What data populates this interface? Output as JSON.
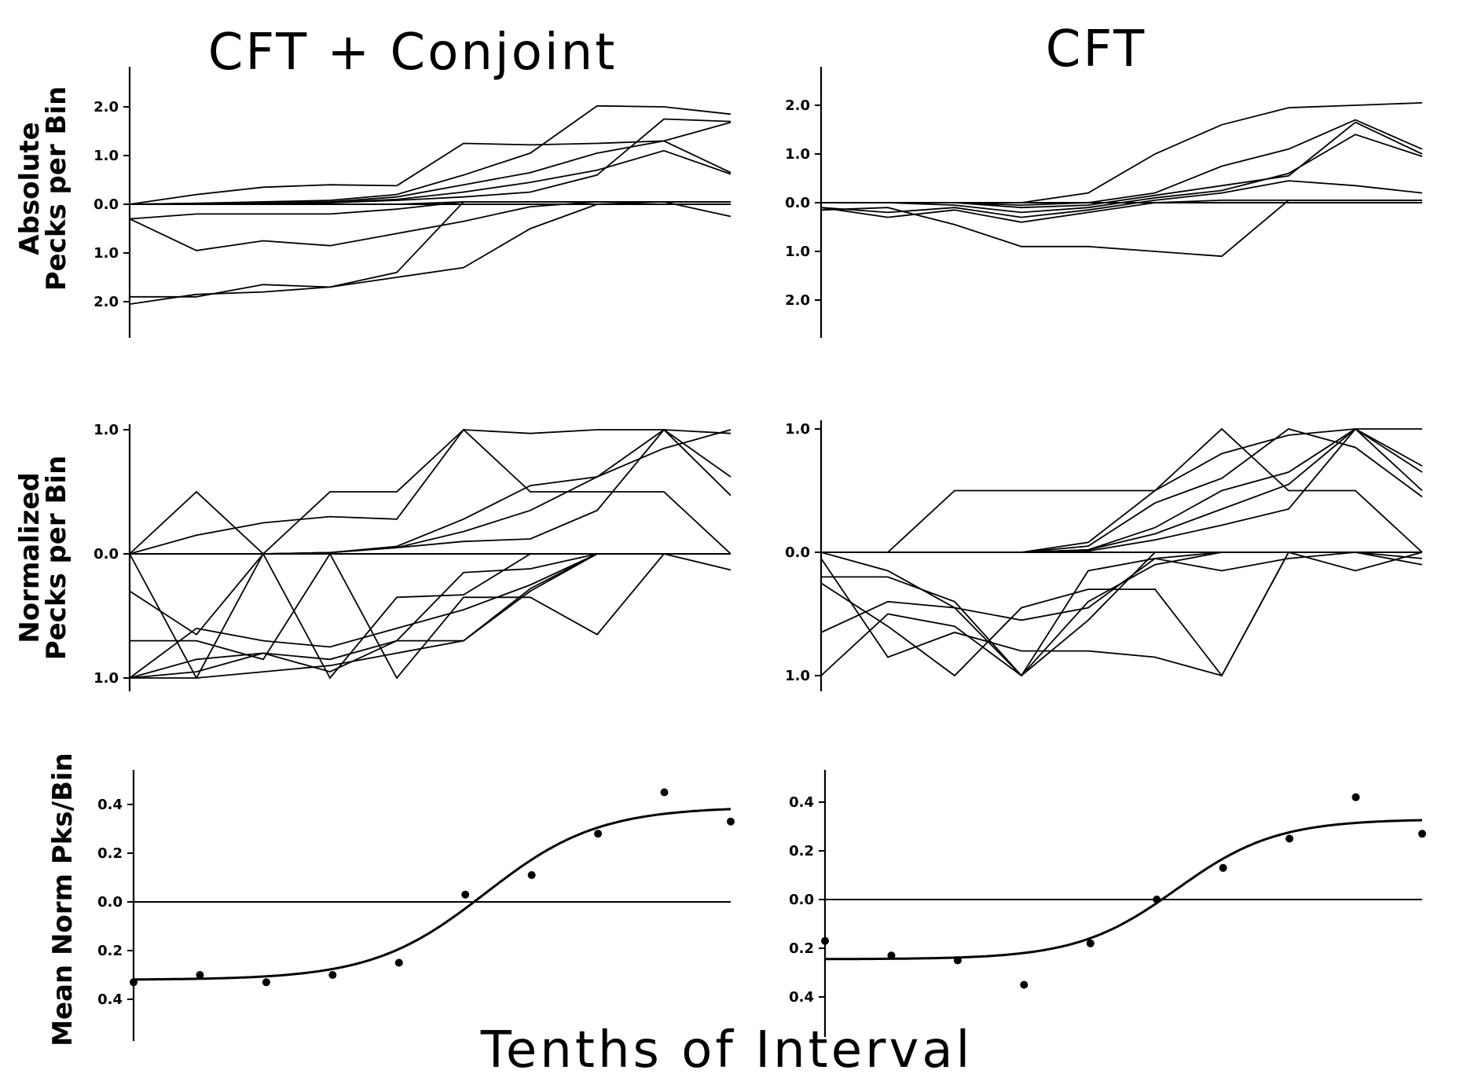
{
  "figure": {
    "col_titles": [
      "CFT + Conjoint",
      "CFT"
    ],
    "x_title": "Tenths of Interval",
    "row_ylabels": [
      [
        "Absolute",
        "Pecks per Bin"
      ],
      [
        "Normalized",
        "Pecks per Bin"
      ],
      [
        "Mean Norm Pks/Bin"
      ]
    ]
  },
  "chart_data": [
    {
      "id": "abs-conjoint",
      "type": "line",
      "title": "CFT + Conjoint",
      "ylabel": "Absolute Pecks per Bin",
      "xlabel": "Tenths of Interval",
      "x": [
        1,
        2,
        3,
        4,
        5,
        6,
        7,
        8,
        9,
        10
      ],
      "ylim": [
        -2.7,
        2.7
      ],
      "ytick_values": [
        2,
        1,
        0,
        -1,
        -2
      ],
      "ytick_labels": [
        "2.0",
        "1.0",
        "0.0",
        "1.0",
        "2.0"
      ],
      "series": [
        {
          "values": [
            0,
            0.2,
            0.35,
            0.4,
            0.38,
            1.25,
            1.22,
            1.25,
            1.3,
            1.68
          ]
        },
        {
          "values": [
            0,
            0.02,
            0.05,
            0.08,
            0.2,
            0.6,
            1.05,
            2.02,
            2.0,
            1.85
          ]
        },
        {
          "values": [
            0,
            0.02,
            0.03,
            0.05,
            0.15,
            0.4,
            0.65,
            1.05,
            1.3,
            0.65
          ]
        },
        {
          "values": [
            0,
            0.01,
            0.02,
            0.04,
            0.1,
            0.25,
            0.45,
            0.7,
            1.1,
            0.62
          ]
        },
        {
          "values": [
            0,
            0,
            0.01,
            0.03,
            0.08,
            0.15,
            0.25,
            0.6,
            1.75,
            1.7
          ]
        },
        {
          "values": [
            0,
            0,
            0,
            0,
            0,
            0.05,
            0.05,
            0.05,
            0.05,
            0.05
          ]
        },
        {
          "values": [
            -0.3,
            -0.2,
            -0.2,
            -0.2,
            -0.1,
            0.05,
            0.05,
            0.05,
            0.05,
            -0.25
          ]
        },
        {
          "values": [
            -0.3,
            -0.95,
            -0.75,
            -0.85,
            -0.6,
            -0.35,
            -0.05,
            0.05,
            0.05,
            0.05
          ]
        },
        {
          "values": [
            -1.9,
            -1.9,
            -1.65,
            -1.7,
            -1.4,
            0.05,
            0.05,
            0.05,
            0.05,
            0.05
          ]
        },
        {
          "values": [
            -2.05,
            -1.85,
            -1.8,
            -1.7,
            -1.5,
            -1.3,
            -0.5,
            0,
            0.05,
            0.05
          ]
        }
      ]
    },
    {
      "id": "abs-cft",
      "type": "line",
      "title": "CFT",
      "ylabel": "Absolute Pecks per Bin",
      "xlabel": "Tenths of Interval",
      "x": [
        1,
        2,
        3,
        4,
        5,
        6,
        7,
        8,
        9,
        10
      ],
      "ylim": [
        -2.7,
        2.7
      ],
      "ytick_values": [
        2,
        1,
        0,
        -1,
        -2
      ],
      "ytick_labels": [
        "2.0",
        "1.0",
        "0.0",
        "1.0",
        "2.0"
      ],
      "series": [
        {
          "values": [
            0,
            0,
            0,
            0,
            0.2,
            1.0,
            1.6,
            1.95,
            2.0,
            2.05
          ]
        },
        {
          "values": [
            0,
            0,
            0,
            -0.05,
            0,
            0.2,
            0.75,
            1.1,
            1.7,
            1.1
          ]
        },
        {
          "values": [
            0,
            0,
            0,
            -0.1,
            -0.05,
            0.15,
            0.35,
            0.55,
            1.65,
            1.0
          ]
        },
        {
          "values": [
            0,
            0,
            -0.05,
            -0.2,
            -0.1,
            0.1,
            0.25,
            0.6,
            1.4,
            0.95
          ]
        },
        {
          "values": [
            -0.1,
            -0.2,
            -0.1,
            -0.3,
            -0.15,
            0.05,
            0.2,
            0.45,
            0.35,
            0.2
          ]
        },
        {
          "values": [
            -0.1,
            -0.3,
            -0.15,
            -0.4,
            -0.2,
            0,
            0.05,
            0.05,
            0.05,
            0.05
          ]
        },
        {
          "values": [
            -0.15,
            -0.1,
            -0.45,
            -0.9,
            -0.9,
            -1.0,
            -1.1,
            0.05,
            0.05,
            0.05
          ]
        },
        {
          "values": [
            0,
            0,
            0,
            0,
            0,
            0,
            0,
            0,
            0,
            0
          ]
        }
      ]
    },
    {
      "id": "norm-conjoint",
      "type": "line",
      "title": "CFT + Conjoint",
      "ylabel": "Normalized Pecks per Bin",
      "xlabel": "Tenths of Interval",
      "x": [
        1,
        2,
        3,
        4,
        5,
        6,
        7,
        8,
        9,
        10
      ],
      "ylim": [
        -1.05,
        1.08
      ],
      "ytick_values": [
        1,
        0,
        -1
      ],
      "ytick_labels": [
        "1.0",
        "0.0",
        "1.0"
      ],
      "series": [
        {
          "values": [
            0,
            0.5,
            0,
            0.5,
            0.5,
            1.0,
            0.97,
            1.0,
            1.0,
            0.97
          ]
        },
        {
          "values": [
            0,
            0.15,
            0.25,
            0.3,
            0.28,
            1.0,
            0.5,
            0.5,
            0.5,
            0
          ]
        },
        {
          "values": [
            0,
            0,
            0,
            0.01,
            0.06,
            0.28,
            0.55,
            0.62,
            1.0,
            0.62
          ]
        },
        {
          "values": [
            0,
            0,
            0,
            0.01,
            0.05,
            0.18,
            0.35,
            0.62,
            0.85,
            1.0
          ]
        },
        {
          "values": [
            0,
            0,
            0,
            0.01,
            0.05,
            0.1,
            0.12,
            0.35,
            1.0,
            0.47
          ]
        },
        {
          "values": [
            -0.3,
            -0.65,
            0,
            0,
            0,
            0,
            0,
            0,
            0,
            0
          ]
        },
        {
          "values": [
            -0.7,
            -0.7,
            -0.85,
            0,
            -1.0,
            -0.35,
            -0.35,
            -0.65,
            0,
            -0.13
          ]
        },
        {
          "values": [
            -1.0,
            -1.0,
            0,
            -1.0,
            -0.35,
            -0.33,
            0,
            0,
            0,
            0
          ]
        },
        {
          "values": [
            -1.0,
            -0.6,
            -0.7,
            -0.75,
            -0.6,
            -0.45,
            -0.25,
            0,
            0,
            0
          ]
        },
        {
          "values": [
            -1.0,
            -0.95,
            -0.8,
            -0.85,
            -0.7,
            -0.15,
            -0.12,
            0,
            0,
            0
          ]
        },
        {
          "values": [
            -1.0,
            -0.85,
            -0.8,
            -0.95,
            -0.7,
            -0.7,
            -0.3,
            0,
            0,
            0
          ]
        },
        {
          "values": [
            0,
            -1.0,
            -0.95,
            -0.9,
            -0.8,
            -0.7,
            -0.28,
            0,
            0,
            0
          ]
        }
      ]
    },
    {
      "id": "norm-cft",
      "type": "line",
      "title": "CFT",
      "ylabel": "Normalized Pecks per Bin",
      "xlabel": "Tenths of Interval",
      "x": [
        1,
        2,
        3,
        4,
        5,
        6,
        7,
        8,
        9,
        10
      ],
      "ylim": [
        -1.05,
        1.08
      ],
      "ytick_values": [
        1,
        0,
        -1
      ],
      "ytick_labels": [
        "1.0",
        "0.0",
        "1.0"
      ],
      "series": [
        {
          "values": [
            0,
            0,
            0.5,
            0.5,
            0.5,
            0.5,
            1.0,
            0.5,
            0.5,
            0
          ]
        },
        {
          "values": [
            0,
            0,
            0,
            0,
            0.08,
            0.5,
            0.8,
            0.95,
            1.0,
            1.0
          ]
        },
        {
          "values": [
            0,
            0,
            0,
            0,
            0.05,
            0.4,
            0.6,
            1.0,
            0.85,
            0.45
          ]
        },
        {
          "values": [
            0,
            0,
            0,
            0,
            0.02,
            0.2,
            0.5,
            0.65,
            1.0,
            0.65
          ]
        },
        {
          "values": [
            0,
            0,
            0,
            0,
            0.02,
            0.15,
            0.35,
            0.55,
            1.0,
            0.5
          ]
        },
        {
          "values": [
            0,
            0,
            0,
            0,
            0.01,
            0.1,
            0.22,
            0.35,
            1.0,
            0.7
          ]
        },
        {
          "values": [
            -0.2,
            -0.2,
            -0.4,
            -1.0,
            -0.55,
            0,
            0,
            0,
            0,
            0
          ]
        },
        {
          "values": [
            -0.25,
            -0.6,
            -1.0,
            -0.45,
            -0.3,
            -0.3,
            -1.0,
            0,
            0,
            0
          ]
        },
        {
          "values": [
            -0.65,
            -0.4,
            -0.45,
            -0.55,
            -0.45,
            -0.05,
            -0.15,
            -0.05,
            0,
            0
          ]
        },
        {
          "values": [
            -1.0,
            -0.5,
            -0.6,
            -1.0,
            -0.15,
            -0.05,
            0,
            0,
            0,
            -0.1
          ]
        },
        {
          "values": [
            -0.05,
            -0.85,
            -0.65,
            -0.8,
            -0.8,
            -0.85,
            -1.0,
            0,
            -0.15,
            0
          ]
        },
        {
          "values": [
            0,
            -0.15,
            -0.45,
            -1.0,
            -0.4,
            -0.1,
            0,
            0,
            0,
            -0.05
          ]
        }
      ]
    },
    {
      "id": "mean-conjoint",
      "type": "scatter",
      "title": "CFT + Conjoint",
      "ylabel": "Mean Norm Pks/Bin",
      "xlabel": "Tenths of Interval",
      "x": [
        1,
        2,
        3,
        4,
        5,
        6,
        7,
        8,
        9,
        10
      ],
      "ylim": [
        -0.55,
        0.55
      ],
      "ytick_values": [
        0.4,
        0.2,
        0,
        -0.2,
        -0.4
      ],
      "ytick_labels": [
        "0.4",
        "0.2",
        "0.0",
        "0.2",
        "0.4"
      ],
      "points": [
        -0.33,
        -0.3,
        -0.33,
        -0.3,
        -0.25,
        0.03,
        0.11,
        0.28,
        0.45,
        0.33
      ],
      "fit_curve": {
        "type": "sigmoid",
        "lower": -0.32,
        "upper": 0.39,
        "midpoint_x": 6.3,
        "scale": 0.85
      }
    },
    {
      "id": "mean-cft",
      "type": "scatter",
      "title": "CFT",
      "ylabel": "Mean Norm Pks/Bin",
      "xlabel": "Tenths of Interval",
      "x": [
        1,
        2,
        3,
        4,
        5,
        6,
        7,
        8,
        9,
        10
      ],
      "ylim": [
        -0.55,
        0.55
      ],
      "ytick_values": [
        0.4,
        0.2,
        0,
        -0.2,
        -0.4
      ],
      "ytick_labels": [
        "0.4",
        "0.2",
        "0.0",
        "0.2",
        "0.4"
      ],
      "points": [
        -0.17,
        -0.23,
        -0.25,
        -0.35,
        -0.18,
        0,
        0.13,
        0.25,
        0.42,
        0.27
      ],
      "fit_curve": {
        "type": "sigmoid",
        "lower": -0.245,
        "upper": 0.33,
        "midpoint_x": 6.3,
        "scale": 0.75
      }
    }
  ]
}
